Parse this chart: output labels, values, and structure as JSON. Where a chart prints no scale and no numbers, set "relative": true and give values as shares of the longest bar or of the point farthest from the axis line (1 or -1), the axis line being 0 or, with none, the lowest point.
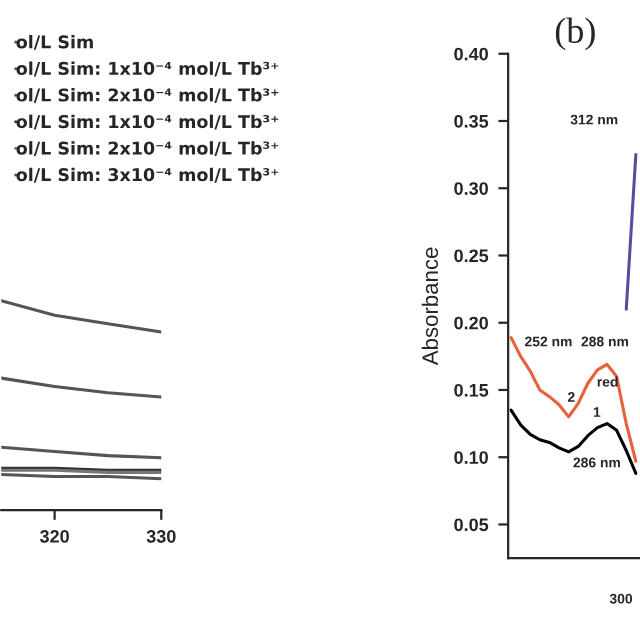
{
  "chart_data": [
    {
      "type": "line",
      "relative": true,
      "x": [
        315,
        320,
        325,
        330
      ],
      "xlim": [
        315,
        330
      ],
      "xticks": [
        320,
        330
      ],
      "legend": "top right",
      "series": [
        {
          "name": "ol/L Sim",
          "color": "#555555",
          "values": [
            1.0,
            0.93,
            0.89,
            0.85
          ]
        },
        {
          "name": "ol/L Sim: 1x10⁻⁴ mol/L Tb³⁺",
          "color": "#555555",
          "values": [
            0.63,
            0.59,
            0.56,
            0.54
          ]
        },
        {
          "name": "ol/L Sim: 2x10⁻⁴ mol/L Tb³⁺",
          "color": "#555555",
          "values": [
            0.3,
            0.28,
            0.26,
            0.25
          ]
        },
        {
          "name": "ol/L Sim: 1x10⁻⁴ mol/L Tb³⁺",
          "color": "#333333",
          "values": [
            0.2,
            0.2,
            0.19,
            0.19
          ]
        },
        {
          "name": "ol/L Sim: 2x10⁻⁴ mol/L Tb³⁺",
          "color": "#777777",
          "values": [
            0.19,
            0.19,
            0.18,
            0.18
          ]
        },
        {
          "name": "ol/L Sim: 3x10⁻⁴ mol/L Tb³⁺",
          "color": "#555555",
          "values": [
            0.17,
            0.16,
            0.16,
            0.15
          ]
        }
      ]
    },
    {
      "type": "line",
      "title": "(b)",
      "ylabel": "Absorbance",
      "ylim": [
        0.025,
        0.4
      ],
      "yticks": [
        0.05,
        {
          "value": 0.1,
          "label": "0.10"
        },
        0.15,
        {
          "value": 0.2,
          "label": "0.20"
        },
        0.25,
        {
          "value": 0.3,
          "label": "0.30"
        },
        0.35,
        {
          "value": 0.4,
          "label": "0.40"
        }
      ],
      "categories": [
        null,
        null,
        null,
        null,
        null,
        null,
        null,
        null,
        null,
        null,
        null,
        null,
        null,
        null
      ],
      "series": [
        {
          "color": "#e8603c",
          "values": [
            0.189,
            0.175,
            0.164,
            0.15,
            0.145,
            0.139,
            0.13,
            0.14,
            0.155,
            0.165,
            0.169,
            0.16,
            0.125,
            0.097
          ]
        },
        {
          "color": "#000000",
          "values": [
            0.135,
            0.124,
            0.117,
            0.113,
            0.111,
            0.107,
            0.104,
            0.108,
            0.116,
            0.122,
            0.125,
            0.12,
            0.105,
            0.088
          ]
        },
        {
          "color": "#5a4aa0",
          "values": [
            null,
            null,
            null,
            null,
            null,
            null,
            null,
            null,
            null,
            null,
            null,
            null,
            0.21,
            0.325
          ]
        }
      ],
      "annotations": [
        "312 nm",
        "252 nm",
        "288 nm",
        "2",
        "1",
        "red",
        "286 nm",
        "300"
      ]
    }
  ]
}
